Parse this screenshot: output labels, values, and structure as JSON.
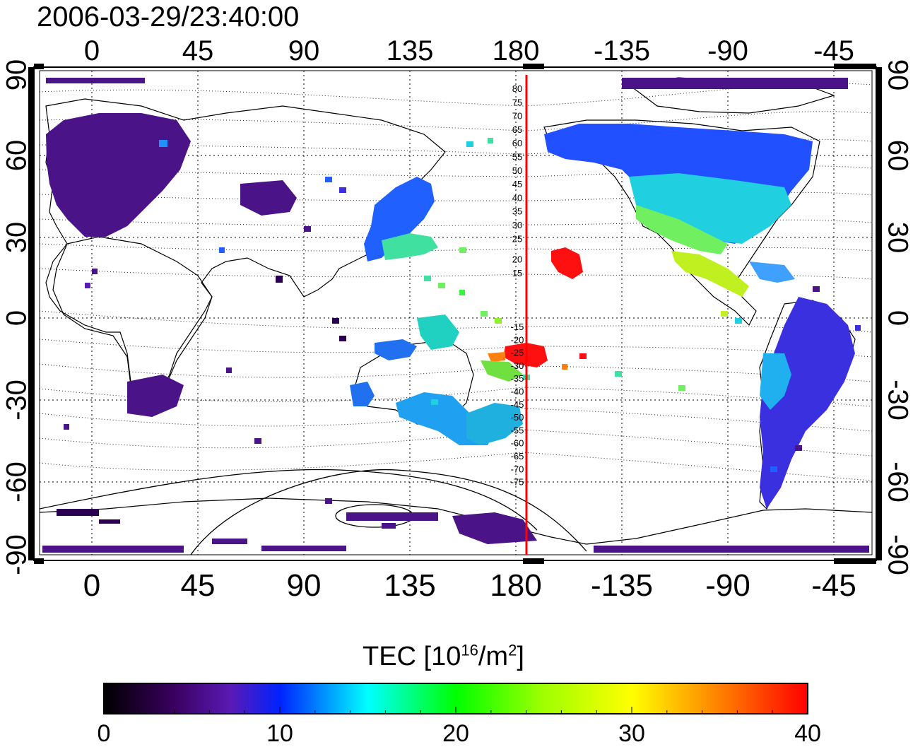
{
  "title": "2006-03-29/23:40:00",
  "map": {
    "top_lon_labels": [
      "0",
      "45",
      "90",
      "135",
      "180",
      "-135",
      "-90",
      "-45"
    ],
    "bottom_lon_labels": [
      "0",
      "45",
      "90",
      "135",
      "180",
      "-135",
      "-90",
      "-45"
    ],
    "left_lat_labels": [
      "90",
      "60",
      "30",
      "0",
      "-30",
      "-60",
      "-90"
    ],
    "right_lat_labels": [
      "90",
      "60",
      "30",
      "0",
      "-30",
      "-60",
      "-90"
    ],
    "maglat_labels_north": [
      "80",
      "75",
      "70",
      "65",
      "60",
      "55",
      "50",
      "45",
      "40",
      "35",
      "30",
      "25",
      "20",
      "15"
    ],
    "maglat_labels_south": [
      "-15",
      "-20",
      "-25",
      "-30",
      "-35",
      "-40",
      "-45",
      "-50",
      "-55",
      "-60",
      "-65",
      "-70",
      "-75"
    ],
    "meridian_line_color": "#ff0000",
    "grid": "dotted"
  },
  "colorbar": {
    "title_main": "TEC  [10",
    "title_sup1": "16",
    "title_mid": "/m",
    "title_sup2": "2",
    "title_end": "]",
    "ticks": [
      "0",
      "10",
      "20",
      "30",
      "40"
    ],
    "range": [
      0,
      40
    ],
    "colormap": [
      "#000000",
      "#3a0060",
      "#5a1ab4",
      "#0022ff",
      "#00ffff",
      "#00ff00",
      "#ffff00",
      "#ff8000",
      "#ff0000"
    ]
  }
}
